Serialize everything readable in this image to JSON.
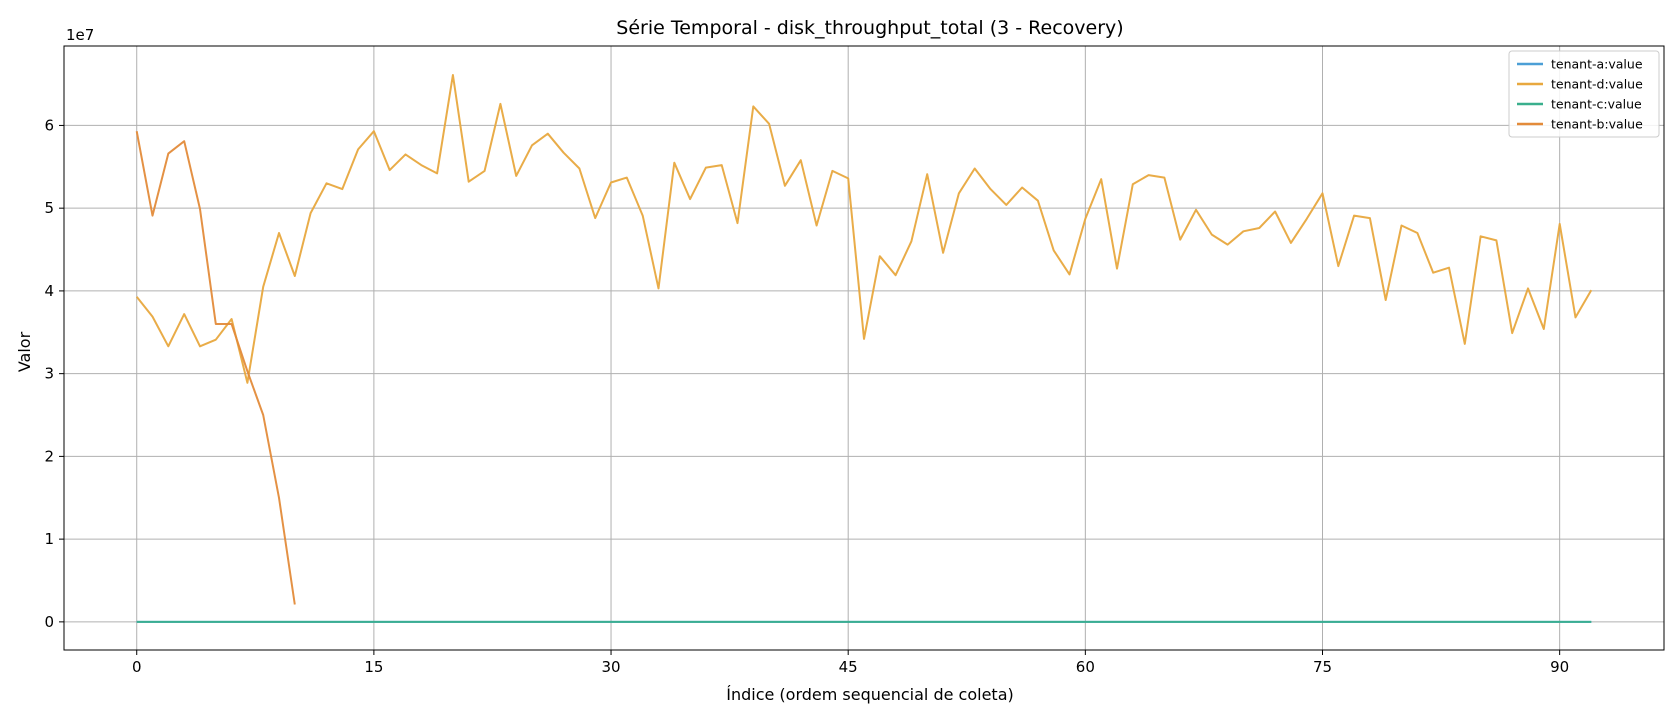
{
  "chart_data": {
    "type": "line",
    "title": "Série Temporal - disk_throughput_total (3 - Recovery)",
    "xlabel": "Índice (ordem sequencial de coleta)",
    "ylabel": "Valor",
    "y_multiplier_label": "1e7",
    "xlim": [
      -4.6,
      96.6
    ],
    "ylim": [
      -3.4,
      69.6
    ],
    "x_ticks": [
      0,
      15,
      30,
      45,
      60,
      75,
      90
    ],
    "y_ticks": [
      0,
      1,
      2,
      3,
      4,
      5,
      6
    ],
    "y_unit": "×1e7",
    "grid": true,
    "legend_position": "top-right",
    "series": [
      {
        "name": "tenant-a:value",
        "color": "#4c9fd6",
        "x_start": 0,
        "values": [
          0,
          0,
          0,
          0,
          0,
          0,
          0,
          0,
          0,
          0,
          0,
          0,
          0,
          0,
          0,
          0,
          0,
          0,
          0,
          0,
          0,
          0,
          0,
          0,
          0,
          0,
          0,
          0,
          0,
          0,
          0,
          0,
          0,
          0,
          0,
          0,
          0,
          0,
          0,
          0,
          0,
          0,
          0,
          0,
          0,
          0,
          0,
          0,
          0,
          0,
          0,
          0,
          0,
          0,
          0,
          0,
          0,
          0,
          0,
          0,
          0,
          0,
          0,
          0,
          0,
          0,
          0,
          0,
          0,
          0,
          0,
          0,
          0,
          0,
          0,
          0,
          0,
          0,
          0,
          0,
          0,
          0,
          0,
          0,
          0,
          0,
          0,
          0,
          0,
          0,
          0,
          0,
          0
        ]
      },
      {
        "name": "tenant-d:value",
        "color": "#e8a83e",
        "x_start": 0,
        "values": [
          39.3,
          36.9,
          33.3,
          37.2,
          33.3,
          34.1,
          36.6,
          28.9,
          40.5,
          47.0,
          41.8,
          49.4,
          53.0,
          52.3,
          57.1,
          59.3,
          54.6,
          56.5,
          55.2,
          54.2,
          66.1,
          53.2,
          54.5,
          62.6,
          53.9,
          57.6,
          59.0,
          56.7,
          54.8,
          48.8,
          53.1,
          53.7,
          49.1,
          40.3,
          55.5,
          51.1,
          54.9,
          55.2,
          48.2,
          62.3,
          60.2,
          52.7,
          55.8,
          47.9,
          54.5,
          53.6,
          34.2,
          44.2,
          41.9,
          46.0,
          54.1,
          44.6,
          51.8,
          54.8,
          52.3,
          50.4,
          52.5,
          50.9,
          44.9,
          42.0,
          48.7,
          53.5,
          42.7,
          52.9,
          54.0,
          53.7,
          46.2,
          49.8,
          46.8,
          45.6,
          47.2,
          47.6,
          49.6,
          45.8,
          48.7,
          51.8,
          43.0,
          49.1,
          48.8,
          38.9,
          47.9,
          47.0,
          42.2,
          42.8,
          33.6,
          46.6,
          46.1,
          34.9,
          40.3,
          35.4,
          48.1,
          36.8,
          40.1
        ]
      },
      {
        "name": "tenant-c:value",
        "color": "#3aaf8d",
        "x_start": 0,
        "values": [
          0,
          0,
          0,
          0,
          0,
          0,
          0,
          0,
          0,
          0,
          0,
          0,
          0,
          0,
          0,
          0,
          0,
          0,
          0,
          0,
          0,
          0,
          0,
          0,
          0,
          0,
          0,
          0,
          0,
          0,
          0,
          0,
          0,
          0,
          0,
          0,
          0,
          0,
          0,
          0,
          0,
          0,
          0,
          0,
          0,
          0,
          0,
          0,
          0,
          0,
          0,
          0,
          0,
          0,
          0,
          0,
          0,
          0,
          0,
          0,
          0,
          0,
          0,
          0,
          0,
          0,
          0,
          0,
          0,
          0,
          0,
          0,
          0,
          0,
          0,
          0,
          0,
          0,
          0,
          0,
          0,
          0,
          0,
          0,
          0,
          0,
          0,
          0,
          0,
          0,
          0,
          0,
          0
        ]
      },
      {
        "name": "tenant-b:value",
        "color": "#e38b3a",
        "x_start": 0,
        "values": [
          59.3,
          49.1,
          56.6,
          58.1,
          49.9,
          36.0,
          36.0,
          30.3,
          25.0,
          15.0,
          2.1
        ]
      }
    ]
  }
}
